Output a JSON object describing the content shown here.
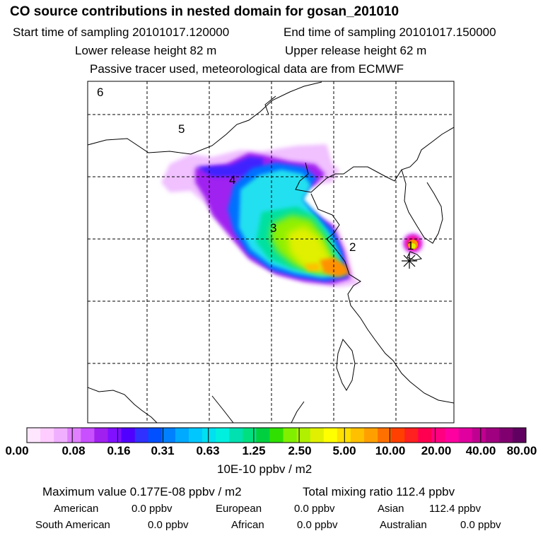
{
  "header": {
    "title": "CO  source contributions in nested domain for gosan_201010",
    "start_time": "Start time of sampling 20101017.120000",
    "end_time": "End time of sampling 20101017.150000",
    "lower_release": "Lower release height   82 m",
    "upper_release": "Upper release height   62 m",
    "tracer_note": "Passive tracer used, meteorological data are from ECMWF"
  },
  "map": {
    "region_labels": [
      "6",
      "5",
      "4",
      "3",
      "2",
      "1"
    ],
    "receptor_icon": "asterisk-marker"
  },
  "colorbar": {
    "tick_labels": [
      "0.00",
      "0.08",
      "0.16",
      "0.31",
      "0.63",
      "1.25",
      "2.50",
      "5.00",
      "10.00",
      "20.00",
      "40.00",
      "80.00"
    ],
    "colors": [
      "#ffe6ff",
      "#ffccff",
      "#f0b0ff",
      "#e080ff",
      "#c850ff",
      "#a020f0",
      "#8010ff",
      "#5000ff",
      "#3030ff",
      "#0050ff",
      "#0080ff",
      "#00aaff",
      "#00c8ff",
      "#00e0f0",
      "#00f0e0",
      "#00e0b0",
      "#00e080",
      "#00d040",
      "#30e000",
      "#80f000",
      "#b0f000",
      "#e0f000",
      "#ffff00",
      "#ffe000",
      "#ffc000",
      "#ffa000",
      "#ff7000",
      "#ff4000",
      "#ff2020",
      "#ff0050",
      "#ff0080",
      "#ff00a0",
      "#e000a0",
      "#c00090",
      "#a00080",
      "#800070",
      "#600060"
    ],
    "units": "10E-10 ppbv / m2"
  },
  "stats": {
    "max_value": "Maximum value  0.177E-08 ppbv / m2",
    "total_mixing": "Total mixing ratio      112.4 ppbv",
    "american_label": "American",
    "american_value": "0.0 ppbv",
    "european_label": "European",
    "european_value": "0.0 ppbv",
    "asian_label": "Asian",
    "asian_value": "112.4 ppbv",
    "south_american_label": "South American",
    "south_american_value": "0.0 ppbv",
    "african_label": "African",
    "african_value": "0.0 ppbv",
    "australian_label": "Australian",
    "australian_value": "0.0 ppbv"
  }
}
